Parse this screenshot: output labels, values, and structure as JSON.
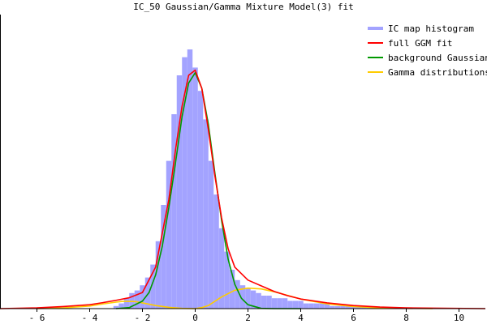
{
  "chart_data": {
    "type": "line",
    "title": "IC_50 Gaussian/Gamma Mixture Model(3) fit",
    "xlabel": "",
    "ylabel": "",
    "xlim": [
      -7.4,
      11.0
    ],
    "x_ticks": [
      -6,
      -4,
      -2,
      0,
      2,
      4,
      6,
      8,
      10
    ],
    "x_tick_labels": [
      "- 6",
      "- 4",
      "- 2",
      "0",
      "2",
      "4",
      "6",
      "8",
      "10"
    ],
    "ylim": [
      0,
      1.0
    ],
    "grid": false,
    "legend_position": "top-right",
    "colors": {
      "histogram": "#a3a3ff",
      "full_fit": "#ff0000",
      "background": "#009900",
      "gamma": "#ffcc00",
      "axis": "#000000"
    },
    "legend": [
      {
        "label": "IC map histogram",
        "series": "histogram"
      },
      {
        "label": "full GGM fit",
        "series": "full_fit"
      },
      {
        "label": "background Gaussian",
        "series": "background"
      },
      {
        "label": "Gamma distributions",
        "series": "gamma"
      }
    ],
    "histogram": {
      "name": "IC map histogram",
      "bin_width": 0.2,
      "bins": [
        {
          "x": -3.0,
          "y": 0.01
        },
        {
          "x": -2.8,
          "y": 0.02
        },
        {
          "x": -2.6,
          "y": 0.04
        },
        {
          "x": -2.4,
          "y": 0.06
        },
        {
          "x": -2.2,
          "y": 0.07
        },
        {
          "x": -2.0,
          "y": 0.09
        },
        {
          "x": -1.8,
          "y": 0.12
        },
        {
          "x": -1.6,
          "y": 0.17
        },
        {
          "x": -1.4,
          "y": 0.26
        },
        {
          "x": -1.2,
          "y": 0.4
        },
        {
          "x": -1.0,
          "y": 0.57
        },
        {
          "x": -0.8,
          "y": 0.75
        },
        {
          "x": -0.6,
          "y": 0.9
        },
        {
          "x": -0.4,
          "y": 0.97
        },
        {
          "x": -0.2,
          "y": 1.0
        },
        {
          "x": 0.0,
          "y": 0.93
        },
        {
          "x": 0.2,
          "y": 0.84
        },
        {
          "x": 0.4,
          "y": 0.73
        },
        {
          "x": 0.6,
          "y": 0.57
        },
        {
          "x": 0.8,
          "y": 0.44
        },
        {
          "x": 1.0,
          "y": 0.31
        },
        {
          "x": 1.2,
          "y": 0.22
        },
        {
          "x": 1.4,
          "y": 0.15
        },
        {
          "x": 1.6,
          "y": 0.11
        },
        {
          "x": 1.8,
          "y": 0.09
        },
        {
          "x": 2.0,
          "y": 0.08
        },
        {
          "x": 2.2,
          "y": 0.07
        },
        {
          "x": 2.4,
          "y": 0.06
        },
        {
          "x": 2.6,
          "y": 0.05
        },
        {
          "x": 2.8,
          "y": 0.05
        },
        {
          "x": 3.0,
          "y": 0.04
        },
        {
          "x": 3.2,
          "y": 0.04
        },
        {
          "x": 3.4,
          "y": 0.04
        },
        {
          "x": 3.6,
          "y": 0.03
        },
        {
          "x": 3.8,
          "y": 0.03
        },
        {
          "x": 4.0,
          "y": 0.03
        },
        {
          "x": 4.2,
          "y": 0.02
        },
        {
          "x": 4.4,
          "y": 0.02
        },
        {
          "x": 4.6,
          "y": 0.02
        },
        {
          "x": 4.8,
          "y": 0.02
        },
        {
          "x": 5.0,
          "y": 0.02
        },
        {
          "x": 5.2,
          "y": 0.01
        },
        {
          "x": 5.4,
          "y": 0.01
        },
        {
          "x": 5.6,
          "y": 0.01
        },
        {
          "x": 5.8,
          "y": 0.01
        },
        {
          "x": 6.0,
          "y": 0.01
        },
        {
          "x": 6.2,
          "y": 0.01
        },
        {
          "x": 6.4,
          "y": 0.01
        },
        {
          "x": 6.6,
          "y": 0.005
        },
        {
          "x": 6.8,
          "y": 0.005
        },
        {
          "x": 7.0,
          "y": 0.005
        }
      ]
    },
    "series": [
      {
        "name": "full GGM fit",
        "x": [
          -7.4,
          -6.0,
          -5.0,
          -4.0,
          -3.5,
          -3.0,
          -2.5,
          -2.0,
          -1.5,
          -1.0,
          -0.75,
          -0.5,
          -0.25,
          0.0,
          0.25,
          0.5,
          0.75,
          1.0,
          1.25,
          1.5,
          2.0,
          2.5,
          3.0,
          3.5,
          4.0,
          5.0,
          6.0,
          7.0,
          8.0,
          11.0
        ],
        "y": [
          0.0,
          0.003,
          0.008,
          0.015,
          0.023,
          0.032,
          0.042,
          0.062,
          0.16,
          0.42,
          0.61,
          0.78,
          0.9,
          0.92,
          0.85,
          0.69,
          0.51,
          0.35,
          0.23,
          0.16,
          0.11,
          0.088,
          0.066,
          0.05,
          0.037,
          0.022,
          0.012,
          0.006,
          0.003,
          0.0
        ]
      },
      {
        "name": "background Gaussian",
        "x": [
          -3.0,
          -2.5,
          -2.0,
          -1.75,
          -1.5,
          -1.25,
          -1.0,
          -0.75,
          -0.5,
          -0.25,
          0.0,
          0.25,
          0.5,
          0.75,
          1.0,
          1.25,
          1.5,
          1.75,
          2.0,
          2.5,
          3.0,
          3.5,
          4.0
        ],
        "y": [
          0.0,
          0.004,
          0.029,
          0.062,
          0.13,
          0.24,
          0.39,
          0.56,
          0.74,
          0.87,
          0.91,
          0.85,
          0.71,
          0.52,
          0.34,
          0.19,
          0.094,
          0.04,
          0.015,
          0.001,
          0.0,
          0.0,
          0.0
        ]
      },
      {
        "name": "Gamma distributions",
        "x": [
          -6.0,
          -5.0,
          -4.0,
          -3.5,
          -3.0,
          -2.75,
          -2.5,
          -2.25,
          -2.0,
          -1.5,
          -1.0,
          -0.5,
          0.0,
          0.25,
          0.5,
          1.0,
          1.5,
          2.0,
          2.5,
          3.0,
          3.5,
          4.0,
          5.0,
          6.0,
          7.0,
          8.0,
          9.0
        ],
        "y": [
          0.0,
          0.003,
          0.01,
          0.018,
          0.025,
          0.028,
          0.028,
          0.027,
          0.022,
          0.012,
          0.005,
          0.001,
          0.0,
          0.004,
          0.012,
          0.045,
          0.071,
          0.079,
          0.076,
          0.065,
          0.051,
          0.037,
          0.018,
          0.008,
          0.003,
          0.001,
          0.0
        ]
      }
    ]
  }
}
